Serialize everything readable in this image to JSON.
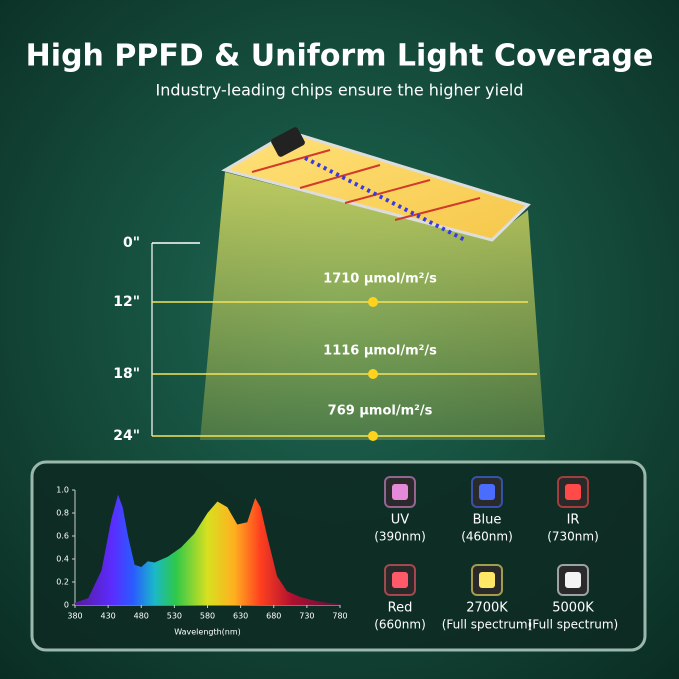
{
  "header": {
    "title": "High PPFD & Uniform Light Coverage",
    "subtitle": "Industry-leading chips ensure the higher yield"
  },
  "heights": [
    "0\"",
    "12\"",
    "18\"",
    "24\""
  ],
  "readings": [
    "1710 μmol/m²/s",
    "1116 μmol/m²/s",
    "769 μmol/m²/s"
  ],
  "chips": [
    {
      "name": "UV",
      "detail": "(390nm)",
      "color": "#e48ad8"
    },
    {
      "name": "Blue",
      "detail": "(460nm)",
      "color": "#4a6cff"
    },
    {
      "name": "IR",
      "detail": "(730nm)",
      "color": "#ff4a4a"
    },
    {
      "name": "Red",
      "detail": "(660nm)",
      "color": "#ff5a6a"
    },
    {
      "name": "2700K",
      "detail": "(Full spectrum)",
      "color": "#ffe866"
    },
    {
      "name": "5000K",
      "detail": "(Full spectrum)",
      "color": "#f4f4f4"
    }
  ],
  "chart_data": {
    "type": "area",
    "xlabel": "Wavelength(nm)",
    "x": [
      380,
      400,
      420,
      435,
      445,
      452,
      460,
      470,
      480,
      490,
      500,
      520,
      540,
      560,
      580,
      595,
      610,
      625,
      640,
      652,
      660,
      670,
      685,
      700,
      720,
      740,
      760,
      780
    ],
    "values": [
      0.02,
      0.06,
      0.3,
      0.75,
      0.96,
      0.85,
      0.6,
      0.35,
      0.33,
      0.38,
      0.37,
      0.42,
      0.5,
      0.62,
      0.8,
      0.9,
      0.85,
      0.7,
      0.72,
      0.93,
      0.85,
      0.6,
      0.25,
      0.12,
      0.07,
      0.04,
      0.02,
      0.01
    ],
    "xlim": [
      380,
      780
    ],
    "xticks": [
      380,
      430,
      480,
      530,
      580,
      630,
      680,
      730,
      780
    ],
    "ylim": [
      0,
      1
    ],
    "yticks": [
      0,
      0.2,
      0.4,
      0.6,
      0.8,
      {
        "value": 1,
        "label": "1.0"
      }
    ]
  }
}
